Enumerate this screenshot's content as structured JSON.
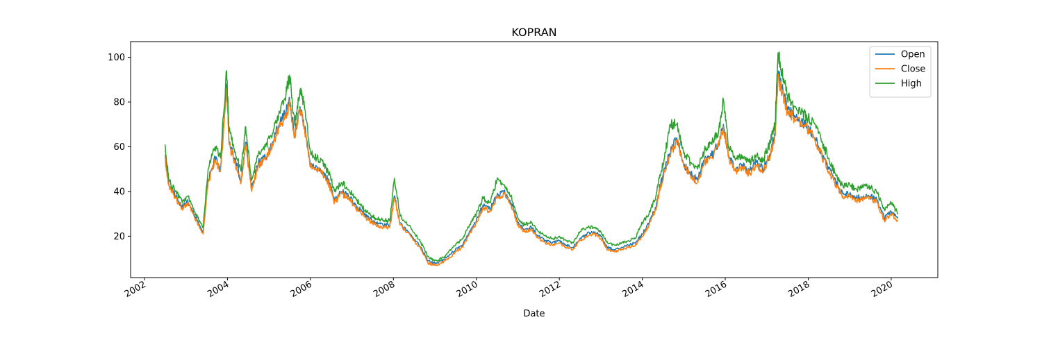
{
  "chart_data": {
    "type": "line",
    "title": "KOPRAN",
    "xlabel": "Date",
    "ylabel": "",
    "x_ticks": [
      "2002",
      "2004",
      "2006",
      "2008",
      "2010",
      "2012",
      "2014",
      "2016",
      "2018",
      "2020"
    ],
    "y_ticks": [
      "20",
      "40",
      "60",
      "80",
      "100"
    ],
    "xlim": [
      "2001-09-01",
      "2021-02-15"
    ],
    "ylim": [
      1.5,
      107
    ],
    "grid": false,
    "legend_position": "top-right",
    "series": [
      {
        "name": "Open",
        "color": "#1f77b4",
        "x": [
          "2002-07-01",
          "2002-08-01",
          "2002-10-01",
          "2002-12-01",
          "2003-01-15",
          "2003-03-20",
          "2003-06-01",
          "2003-07-15",
          "2003-09-15",
          "2003-11-01",
          "2003-12-25",
          "2004-01-15",
          "2004-03-01",
          "2004-05-01",
          "2004-06-10",
          "2004-08-01",
          "2004-10-01",
          "2004-12-01",
          "2005-02-01",
          "2005-04-01",
          "2005-06-01",
          "2005-07-01",
          "2005-08-15",
          "2005-10-01",
          "2005-11-01",
          "2006-01-01",
          "2006-03-01",
          "2006-05-01",
          "2006-06-15",
          "2006-08-01",
          "2006-10-01",
          "2006-12-01",
          "2007-02-01",
          "2007-04-01",
          "2007-06-01",
          "2007-08-01",
          "2007-10-01",
          "2007-12-01",
          "2008-01-10",
          "2008-03-01",
          "2008-06-01",
          "2008-09-01",
          "2008-11-01",
          "2009-01-01",
          "2009-03-01",
          "2009-05-01",
          "2009-07-01",
          "2009-09-01",
          "2009-11-01",
          "2010-01-01",
          "2010-03-01",
          "2010-05-01",
          "2010-07-01",
          "2010-09-01",
          "2010-11-01",
          "2011-01-01",
          "2011-03-01",
          "2011-05-01",
          "2011-07-01",
          "2011-09-01",
          "2011-11-01",
          "2012-01-01",
          "2012-03-01",
          "2012-05-01",
          "2012-07-01",
          "2012-09-01",
          "2012-11-01",
          "2013-01-01",
          "2013-03-01",
          "2013-05-01",
          "2013-07-01",
          "2013-09-01",
          "2013-11-01",
          "2014-01-01",
          "2014-03-01",
          "2014-05-01",
          "2014-06-01",
          "2014-07-15",
          "2014-09-01",
          "2014-11-01",
          "2015-01-01",
          "2015-03-01",
          "2015-05-01",
          "2015-07-01",
          "2015-09-01",
          "2015-11-01",
          "2015-12-15",
          "2016-02-01",
          "2016-04-01",
          "2016-06-01",
          "2016-08-01",
          "2016-10-01",
          "2016-12-01",
          "2017-02-01",
          "2017-03-15",
          "2017-04-10",
          "2017-05-15",
          "2017-07-01",
          "2017-09-01",
          "2017-11-01",
          "2018-01-01",
          "2018-03-01",
          "2018-05-01",
          "2018-07-01",
          "2018-09-01",
          "2018-11-01",
          "2019-01-01",
          "2019-03-01",
          "2019-05-01",
          "2019-07-01",
          "2019-09-01",
          "2019-11-01",
          "2020-01-01",
          "2020-03-01"
        ],
        "values": [
          56,
          44,
          38,
          33,
          36,
          29,
          22,
          45,
          55,
          50,
          88,
          62,
          55,
          45,
          62,
          41,
          53,
          55,
          62,
          70,
          75,
          82,
          65,
          78,
          72,
          52,
          51,
          48,
          44,
          36,
          40,
          38,
          34,
          31,
          28,
          26,
          25,
          25,
          38,
          26,
          21,
          15,
          9,
          8,
          9,
          11,
          14,
          16,
          22,
          27,
          34,
          32,
          38,
          40,
          35,
          26,
          23,
          24,
          20,
          18,
          17,
          18,
          16,
          15,
          19,
          21,
          22,
          20,
          15,
          14,
          15,
          16,
          17,
          21,
          26,
          33,
          41,
          50,
          57,
          64,
          52,
          48,
          45,
          54,
          56,
          61,
          70,
          56,
          50,
          52,
          49,
          53,
          50,
          57,
          66,
          93,
          86,
          77,
          74,
          71,
          69,
          64,
          57,
          50,
          44,
          39,
          39,
          37,
          38,
          38,
          36,
          28,
          31,
          28
        ]
      },
      {
        "name": "Close",
        "color": "#ff7f0e",
        "x": [
          "2002-07-01",
          "2002-08-01",
          "2002-10-01",
          "2002-12-01",
          "2003-01-15",
          "2003-03-20",
          "2003-06-01",
          "2003-07-15",
          "2003-09-15",
          "2003-11-01",
          "2003-12-25",
          "2004-01-15",
          "2004-03-01",
          "2004-05-01",
          "2004-06-10",
          "2004-08-01",
          "2004-10-01",
          "2004-12-01",
          "2005-02-01",
          "2005-04-01",
          "2005-06-01",
          "2005-07-01",
          "2005-08-15",
          "2005-10-01",
          "2005-11-01",
          "2006-01-01",
          "2006-03-01",
          "2006-05-01",
          "2006-06-15",
          "2006-08-01",
          "2006-10-01",
          "2006-12-01",
          "2007-02-01",
          "2007-04-01",
          "2007-06-01",
          "2007-08-01",
          "2007-10-01",
          "2007-12-01",
          "2008-01-10",
          "2008-03-01",
          "2008-06-01",
          "2008-09-01",
          "2008-11-01",
          "2009-01-01",
          "2009-03-01",
          "2009-05-01",
          "2009-07-01",
          "2009-09-01",
          "2009-11-01",
          "2010-01-01",
          "2010-03-01",
          "2010-05-01",
          "2010-07-01",
          "2010-09-01",
          "2010-11-01",
          "2011-01-01",
          "2011-03-01",
          "2011-05-01",
          "2011-07-01",
          "2011-09-01",
          "2011-11-01",
          "2012-01-01",
          "2012-03-01",
          "2012-05-01",
          "2012-07-01",
          "2012-09-01",
          "2012-11-01",
          "2013-01-01",
          "2013-03-01",
          "2013-05-01",
          "2013-07-01",
          "2013-09-01",
          "2013-11-01",
          "2014-01-01",
          "2014-03-01",
          "2014-05-01",
          "2014-06-01",
          "2014-07-15",
          "2014-09-01",
          "2014-11-01",
          "2015-01-01",
          "2015-03-01",
          "2015-05-01",
          "2015-07-01",
          "2015-09-01",
          "2015-11-01",
          "2015-12-15",
          "2016-02-01",
          "2016-04-01",
          "2016-06-01",
          "2016-08-01",
          "2016-10-01",
          "2016-12-01",
          "2017-02-01",
          "2017-03-15",
          "2017-04-10",
          "2017-05-15",
          "2017-07-01",
          "2017-09-01",
          "2017-11-01",
          "2018-01-01",
          "2018-03-01",
          "2018-05-01",
          "2018-07-01",
          "2018-09-01",
          "2018-11-01",
          "2019-01-01",
          "2019-03-01",
          "2019-05-01",
          "2019-07-01",
          "2019-09-01",
          "2019-11-01",
          "2020-01-01",
          "2020-03-01"
        ],
        "values": [
          55,
          43,
          37,
          32,
          35,
          28,
          21,
          44,
          54,
          49,
          86,
          61,
          54,
          44,
          61,
          40,
          52,
          54,
          61,
          69,
          74,
          80,
          64,
          77,
          71,
          51,
          50,
          47,
          43,
          35,
          39,
          37,
          33,
          30,
          27,
          25,
          24,
          24,
          37,
          25,
          20,
          14,
          8,
          7,
          8,
          10,
          13,
          15,
          21,
          26,
          33,
          31,
          37,
          39,
          34,
          25,
          22,
          23,
          19,
          17,
          16,
          17,
          15,
          14,
          18,
          20,
          21,
          19,
          14,
          13,
          14,
          15,
          16,
          20,
          25,
          32,
          40,
          49,
          56,
          63,
          51,
          47,
          44,
          53,
          55,
          60,
          69,
          55,
          49,
          51,
          48,
          52,
          49,
          56,
          65,
          91,
          84,
          76,
          73,
          70,
          68,
          63,
          56,
          49,
          43,
          38,
          38,
          36,
          37,
          37,
          35,
          27,
          30,
          27
        ]
      },
      {
        "name": "High",
        "color": "#2ca02c",
        "x": [
          "2002-07-01",
          "2002-08-01",
          "2002-10-01",
          "2002-12-01",
          "2003-01-15",
          "2003-03-20",
          "2003-06-01",
          "2003-07-15",
          "2003-09-15",
          "2003-11-01",
          "2003-12-25",
          "2004-01-15",
          "2004-03-01",
          "2004-05-01",
          "2004-06-10",
          "2004-08-01",
          "2004-10-01",
          "2004-12-01",
          "2005-02-01",
          "2005-04-01",
          "2005-06-01",
          "2005-07-01",
          "2005-08-15",
          "2005-10-01",
          "2005-11-01",
          "2006-01-01",
          "2006-03-01",
          "2006-05-01",
          "2006-06-15",
          "2006-08-01",
          "2006-10-01",
          "2006-12-01",
          "2007-02-01",
          "2007-04-01",
          "2007-06-01",
          "2007-08-01",
          "2007-10-01",
          "2007-12-01",
          "2008-01-10",
          "2008-03-01",
          "2008-06-01",
          "2008-09-01",
          "2008-11-01",
          "2009-01-01",
          "2009-03-01",
          "2009-05-01",
          "2009-07-01",
          "2009-09-01",
          "2009-11-01",
          "2010-01-01",
          "2010-03-01",
          "2010-05-01",
          "2010-07-01",
          "2010-09-01",
          "2010-11-01",
          "2011-01-01",
          "2011-03-01",
          "2011-05-01",
          "2011-07-01",
          "2011-09-01",
          "2011-11-01",
          "2012-01-01",
          "2012-03-01",
          "2012-05-01",
          "2012-07-01",
          "2012-09-01",
          "2012-11-01",
          "2013-01-01",
          "2013-03-01",
          "2013-05-01",
          "2013-07-01",
          "2013-09-01",
          "2013-11-01",
          "2014-01-01",
          "2014-03-01",
          "2014-05-01",
          "2014-06-01",
          "2014-07-15",
          "2014-09-01",
          "2014-11-01",
          "2015-01-01",
          "2015-03-01",
          "2015-05-01",
          "2015-07-01",
          "2015-09-01",
          "2015-11-01",
          "2015-12-15",
          "2016-02-01",
          "2016-04-01",
          "2016-06-01",
          "2016-08-01",
          "2016-10-01",
          "2016-12-01",
          "2017-02-01",
          "2017-03-15",
          "2017-04-10",
          "2017-05-15",
          "2017-07-01",
          "2017-09-01",
          "2017-11-01",
          "2018-01-01",
          "2018-03-01",
          "2018-05-01",
          "2018-07-01",
          "2018-09-01",
          "2018-11-01",
          "2019-01-01",
          "2019-03-01",
          "2019-05-01",
          "2019-07-01",
          "2019-09-01",
          "2019-11-01",
          "2020-01-01",
          "2020-03-01"
        ],
        "values": [
          61,
          46,
          40,
          35,
          38,
          31,
          24,
          50,
          60,
          55,
          94,
          67,
          59,
          49,
          69,
          45,
          57,
          60,
          66,
          76,
          84,
          92,
          70,
          85,
          80,
          58,
          55,
          52,
          48,
          40,
          44,
          41,
          37,
          33,
          30,
          28,
          27,
          27,
          46,
          29,
          24,
          17,
          11,
          9,
          10,
          13,
          16,
          19,
          25,
          30,
          37,
          35,
          45,
          43,
          38,
          28,
          25,
          26,
          22,
          20,
          19,
          20,
          18,
          17,
          22,
          24,
          24,
          22,
          17,
          16,
          17,
          18,
          19,
          26,
          30,
          38,
          46,
          55,
          70,
          70,
          57,
          53,
          50,
          58,
          62,
          66,
          81,
          60,
          54,
          56,
          53,
          56,
          54,
          62,
          70,
          102,
          94,
          83,
          78,
          75,
          73,
          70,
          62,
          55,
          47,
          43,
          43,
          41,
          42,
          42,
          39,
          32,
          35,
          30
        ]
      }
    ]
  }
}
